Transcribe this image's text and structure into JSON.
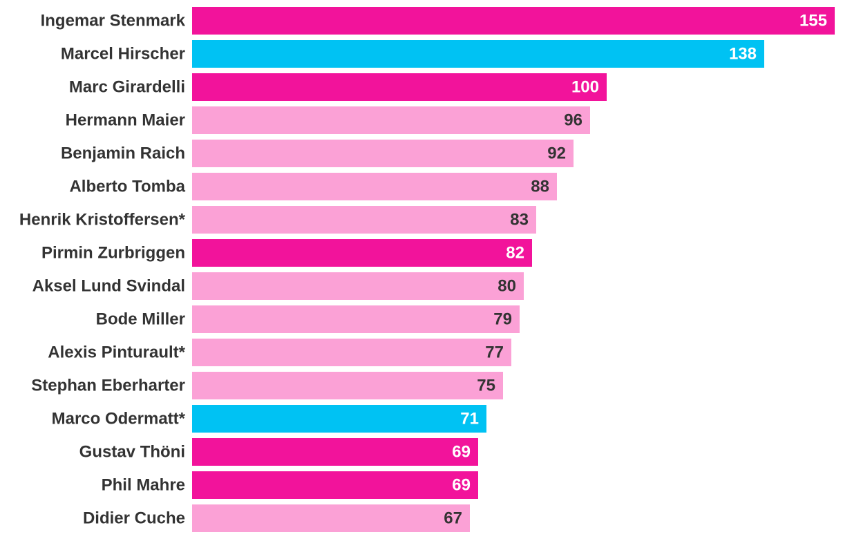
{
  "chart_data": {
    "type": "bar",
    "orientation": "horizontal",
    "title": "",
    "xlabel": "",
    "ylabel": "",
    "xlim": [
      0,
      155
    ],
    "grid": false,
    "legend": "none",
    "categories": [
      "Ingemar Stenmark",
      "Marcel Hirscher",
      "Marc Girardelli",
      "Hermann Maier",
      "Benjamin Raich",
      "Alberto Tomba",
      "Henrik Kristoffersen*",
      "Pirmin Zurbriggen",
      "Aksel Lund Svindal",
      "Bode Miller",
      "Alexis Pinturault*",
      "Stephan Eberharter",
      "Marco Odermatt*",
      "Gustav Thöni",
      "Phil Mahre",
      "Didier Cuche"
    ],
    "values": [
      155,
      138,
      100,
      96,
      92,
      88,
      83,
      82,
      80,
      79,
      77,
      75,
      71,
      69,
      69,
      67
    ],
    "bar_groups": [
      "magenta",
      "cyan",
      "magenta",
      "pink",
      "pink",
      "pink",
      "pink",
      "magenta",
      "pink",
      "pink",
      "pink",
      "pink",
      "cyan",
      "magenta",
      "magenta",
      "pink"
    ],
    "colors": {
      "magenta": "#f2139b",
      "cyan": "#00c2f3",
      "pink": "#fba1d6",
      "label_on_dark": "#ffffff",
      "label_on_light": "#333333",
      "category_text": "#333333"
    }
  }
}
